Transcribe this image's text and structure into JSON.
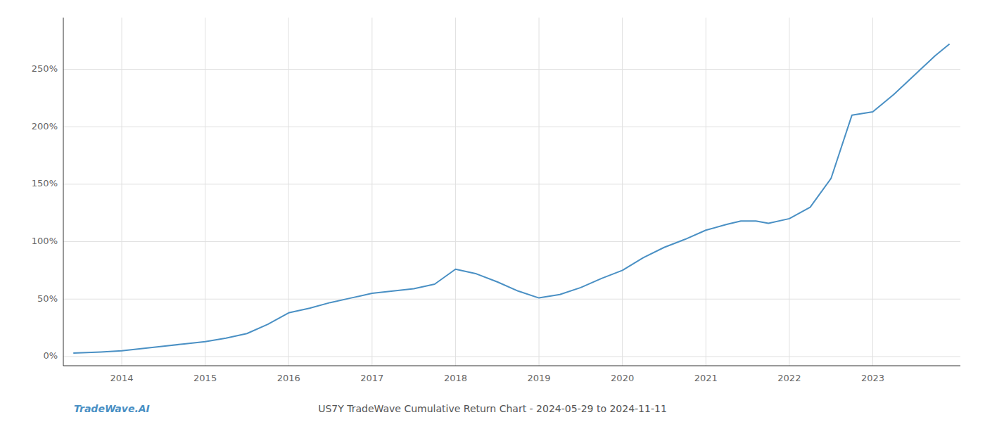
{
  "chart_data": {
    "type": "line",
    "title": "US7Y TradeWave Cumulative Return Chart - 2024-05-29 to 2024-11-11",
    "annotations": [
      "TradeWave.AI"
    ],
    "color": "#4a90c4",
    "grid": true,
    "x": [
      2013.42,
      2013.75,
      2014.0,
      2014.25,
      2014.5,
      2014.75,
      2015.0,
      2015.25,
      2015.5,
      2015.75,
      2016.0,
      2016.25,
      2016.5,
      2016.75,
      2017.0,
      2017.25,
      2017.5,
      2017.75,
      2018.0,
      2018.25,
      2018.5,
      2018.75,
      2019.0,
      2019.25,
      2019.5,
      2019.75,
      2020.0,
      2020.25,
      2020.5,
      2020.75,
      2021.0,
      2021.25,
      2021.42,
      2021.6,
      2021.75,
      2022.0,
      2022.25,
      2022.5,
      2022.75,
      2023.0,
      2023.25,
      2023.5,
      2023.75,
      2023.92
    ],
    "values": [
      3,
      4,
      5,
      7,
      9,
      11,
      13,
      16,
      20,
      28,
      38,
      42,
      47,
      51,
      55,
      57,
      59,
      63,
      76,
      72,
      65,
      57,
      51,
      54,
      60,
      68,
      75,
      86,
      95,
      102,
      110,
      115,
      118,
      118,
      116,
      120,
      130,
      155,
      210,
      213,
      228,
      245,
      262,
      272
    ],
    "xlim": [
      2013.3,
      2024.05
    ],
    "xticks": [
      2014,
      2015,
      2016,
      2017,
      2018,
      2019,
      2020,
      2021,
      2022,
      2023
    ],
    "ylim": [
      -8,
      295
    ],
    "yticks": [
      {
        "value": 0,
        "label": "0%"
      },
      {
        "value": 50,
        "label": "50%"
      },
      {
        "value": 100,
        "label": "100%"
      },
      {
        "value": 150,
        "label": "150%"
      },
      {
        "value": 200,
        "label": "200%"
      },
      {
        "value": 250,
        "label": "250%"
      }
    ]
  }
}
